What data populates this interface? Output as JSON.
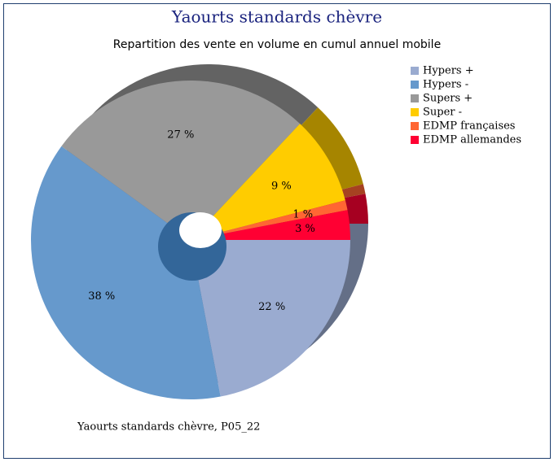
{
  "chart_data": {
    "type": "pie",
    "title": "Yaourts standards chèvre",
    "subtitle": "Repartition des vente en volume en cumul annuel mobile",
    "footnote": "Yaourts standards chèvre, P05_22",
    "categories": [
      "Hypers +",
      "Hypers -",
      "Supers +",
      "Super -",
      "EDMP françaises",
      "EDMP allemandes"
    ],
    "values": [
      22,
      38,
      27,
      9,
      1,
      3
    ],
    "value_labels": [
      "22 %",
      "38 %",
      "27 %",
      "9 %",
      "1 %",
      "3 %"
    ],
    "colors": [
      "#9aabd0",
      "#6699cc",
      "#999999",
      "#ffcc00",
      "#ff6633",
      "#ff0033"
    ],
    "legend": "right"
  }
}
